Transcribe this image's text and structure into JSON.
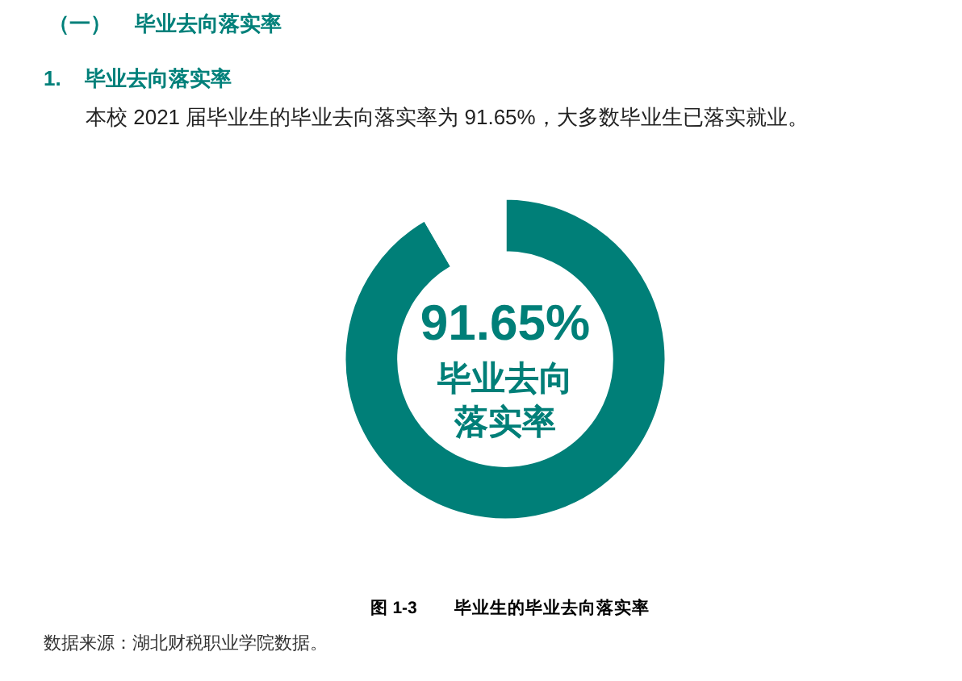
{
  "chart_data": {
    "type": "donut",
    "title": "（一）    毕业去向落实率",
    "subtitle": "1.    毕业去向落实率",
    "categories": [
      "毕业去向落实率",
      null
    ],
    "values": [
      91.65,
      8.35
    ],
    "colors": [
      "#007f78",
      "#ffffff"
    ],
    "value_labels": [
      "91.65%",
      null
    ],
    "annotations": [
      "本校 2021 届毕业生的毕业去向落实率为 91.65%，大多数毕业生已落实就业。",
      "图 1-3        毕业生的毕业去向落实率",
      "数据来源：湖北财税职业学院数据。"
    ]
  }
}
